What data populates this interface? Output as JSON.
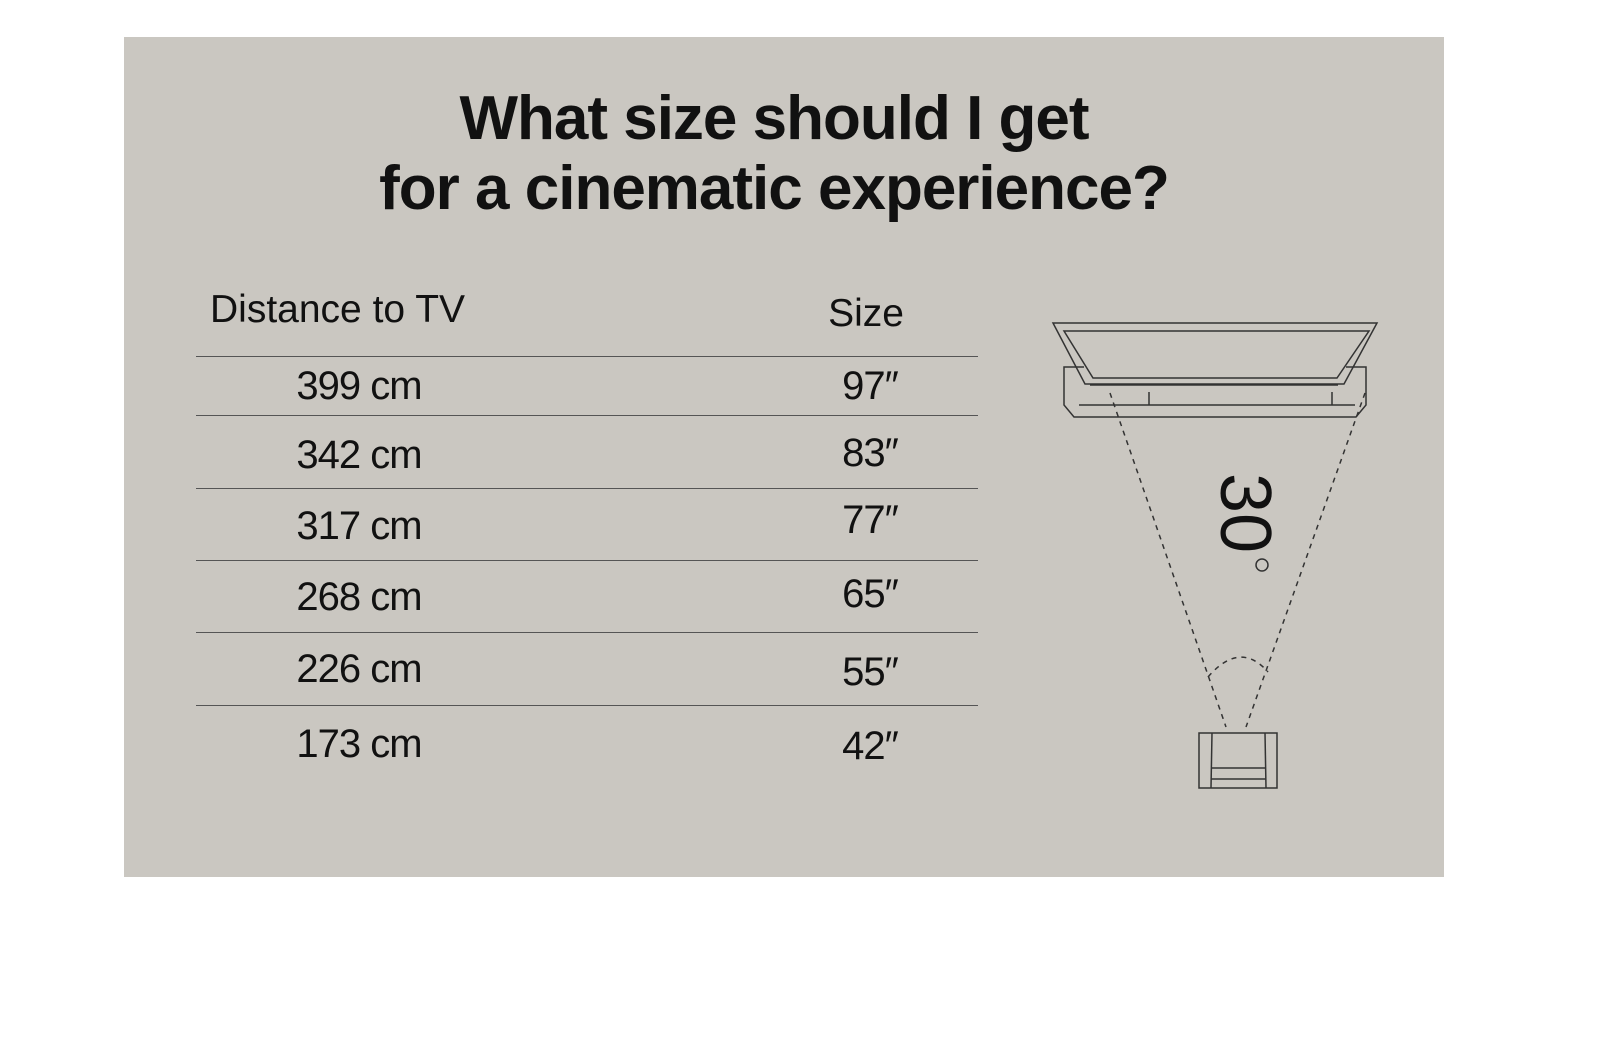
{
  "title_lines": [
    "What size should I get",
    "for a cinematic experience?"
  ],
  "table": {
    "headers": {
      "distance": "Distance to TV",
      "size": "Size"
    },
    "rows": [
      {
        "distance": "399 cm",
        "size": "97″"
      },
      {
        "distance": "342 cm",
        "size": "83″"
      },
      {
        "distance": "317 cm",
        "size": "77″"
      },
      {
        "distance": "268 cm",
        "size": "65″"
      },
      {
        "distance": "226 cm",
        "size": "55″"
      },
      {
        "distance": "173 cm",
        "size": "42″"
      }
    ]
  },
  "diagram": {
    "angle_label": "30",
    "degree_symbol": "°"
  },
  "colors": {
    "panel": "#cac7c1",
    "text": "#111111"
  }
}
